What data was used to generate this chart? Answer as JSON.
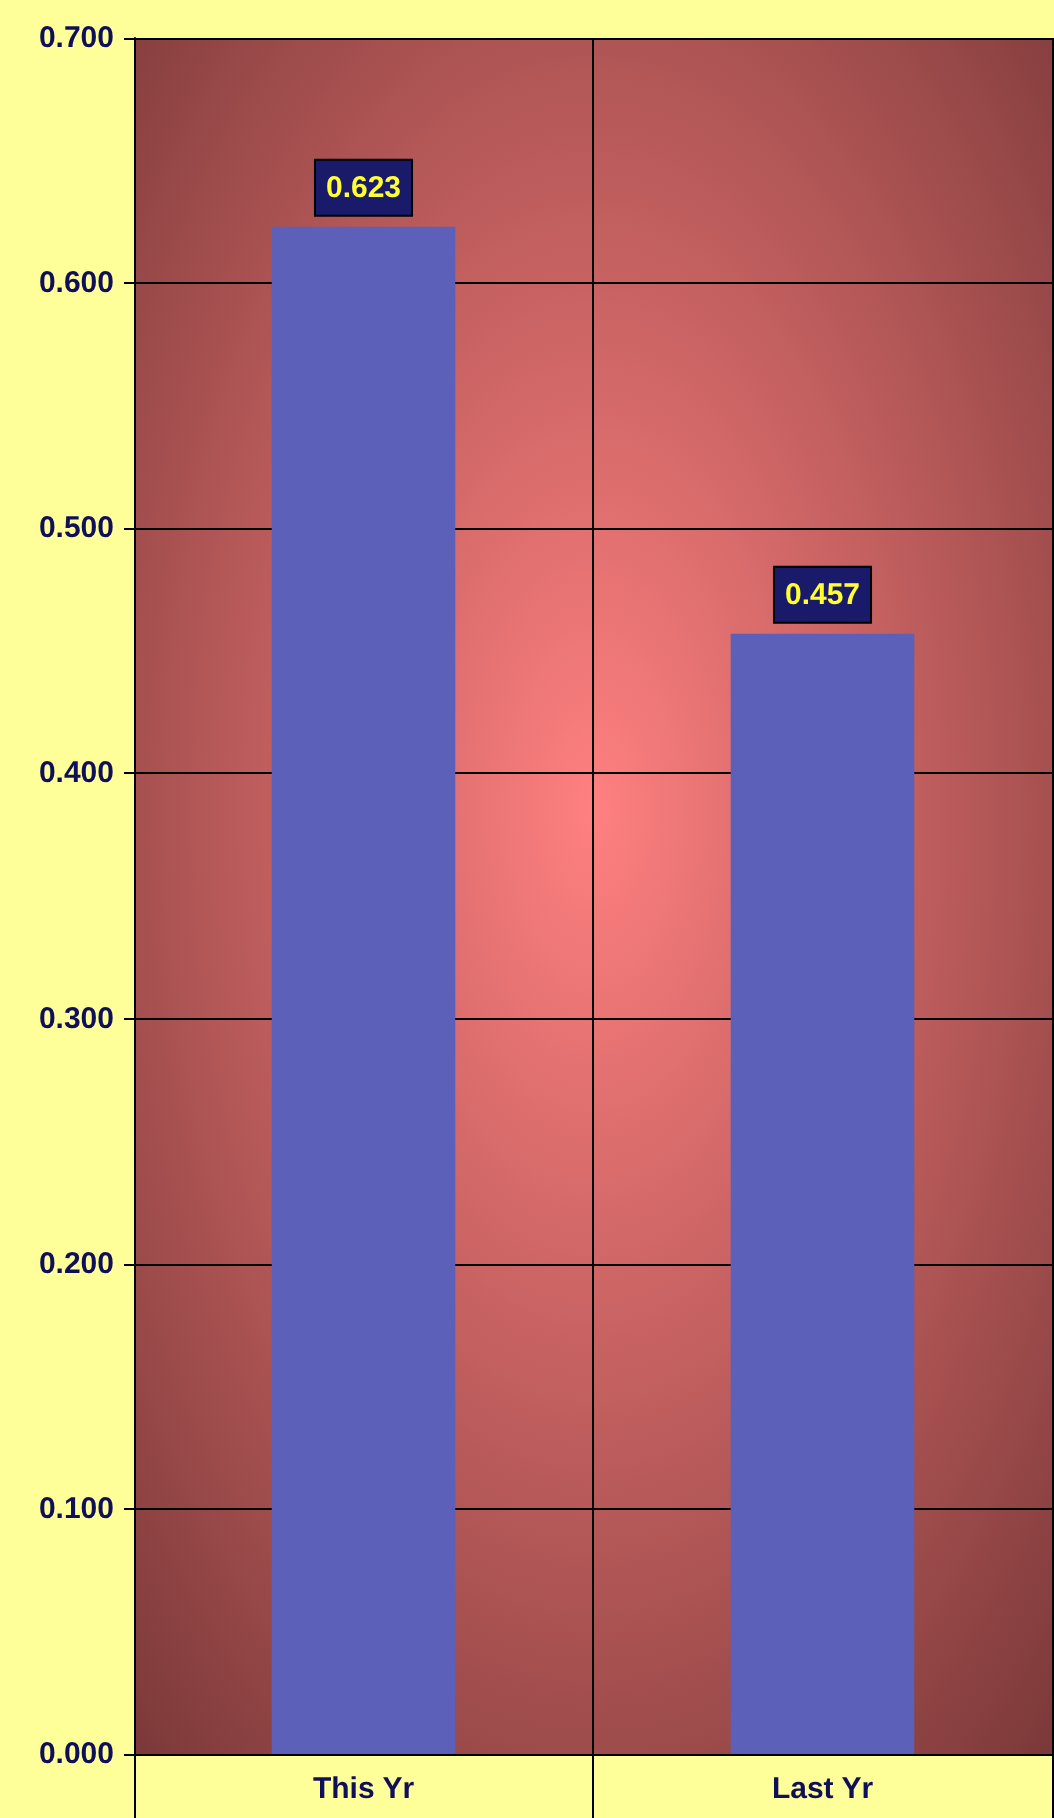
{
  "chart_data": {
    "type": "bar",
    "categories": [
      "This Yr",
      "Last Yr"
    ],
    "values": [
      0.623,
      0.457
    ],
    "color": "#5c60b8",
    "ylim": [
      0,
      0.7
    ],
    "yticks": [
      {
        "value": 0,
        "label": "0.000"
      },
      {
        "value": 0.1,
        "label": "0.100"
      },
      {
        "value": 0.2,
        "label": "0.200"
      },
      {
        "value": 0.3,
        "label": "0.300"
      },
      {
        "value": 0.4,
        "label": "0.400"
      },
      {
        "value": 0.5,
        "label": "0.500"
      },
      {
        "value": 0.6,
        "label": "0.600"
      },
      {
        "value": 0.7,
        "label": "0.700"
      }
    ],
    "grid": true,
    "data_labels": true
  }
}
